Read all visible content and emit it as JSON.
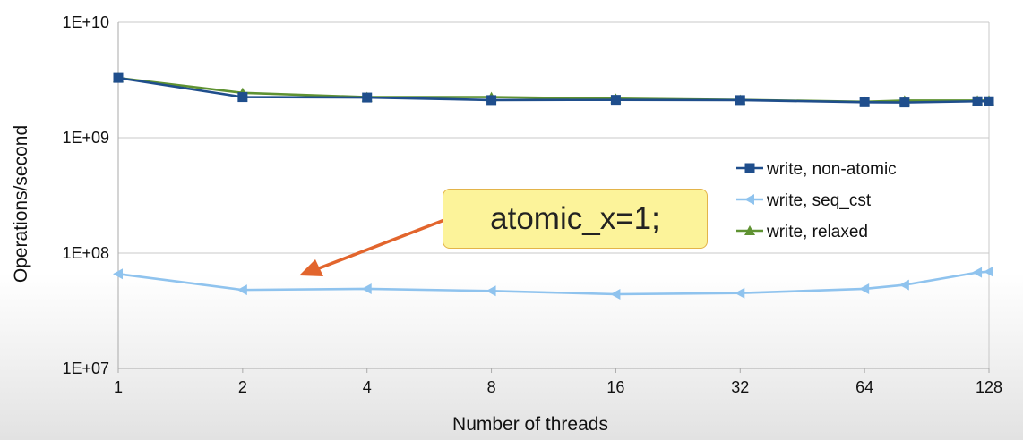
{
  "chart_data": {
    "type": "line",
    "xlabel": "Number of threads",
    "ylabel": "Operations/second",
    "x_scale": "log2",
    "y_scale": "log10",
    "xlim": [
      1,
      128
    ],
    "ylim": [
      10000000,
      10000000000
    ],
    "x_ticks": [
      "1",
      "2",
      "4",
      "8",
      "16",
      "32",
      "64",
      "128"
    ],
    "y_ticks": [
      "1E+10",
      "1E+09",
      "1E+08",
      "1E+07"
    ],
    "grid": "horizontal",
    "legend_position": "right",
    "x": [
      1,
      2,
      4,
      8,
      16,
      32,
      64,
      80,
      120,
      128
    ],
    "series": [
      {
        "name": "write, non-atomic",
        "color": "#1f4e8c",
        "marker": "square",
        "values": [
          3300000000,
          2250000000,
          2230000000,
          2120000000,
          2130000000,
          2120000000,
          2030000000,
          2020000000,
          2070000000,
          2070000000
        ]
      },
      {
        "name": "write, seq_cst",
        "color": "#8fc3ee",
        "marker": "triangle-left",
        "values": [
          66000000,
          48000000,
          49000000,
          47000000,
          44000000,
          45000000,
          49000000,
          53000000,
          68000000,
          69000000
        ]
      },
      {
        "name": "write, relaxed",
        "color": "#5f9232",
        "marker": "triangle-up",
        "values": [
          3300000000,
          2450000000,
          2250000000,
          2250000000,
          2180000000,
          2130000000,
          2050000000,
          2100000000,
          2100000000,
          2100000000
        ]
      }
    ],
    "annotation": {
      "text": "atomic_x=1;",
      "points_to": "write, seq_cst",
      "arrow_color": "#e2652d"
    }
  }
}
